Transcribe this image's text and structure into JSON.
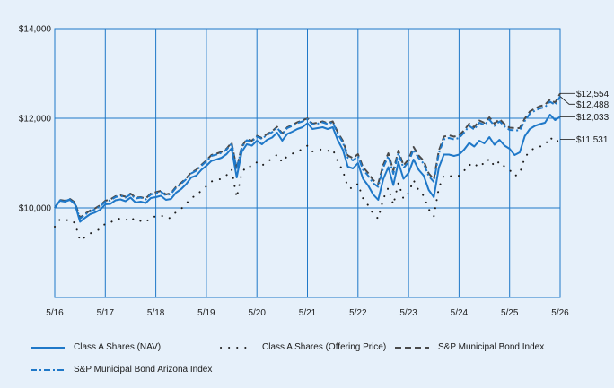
{
  "chart_data": {
    "type": "line",
    "title": "",
    "xlabel": "",
    "ylabel": "",
    "ylim": [
      8000,
      14000
    ],
    "yticks": [
      {
        "value": 10000,
        "label": "$10,000"
      },
      {
        "value": 12000,
        "label": "$12,000"
      },
      {
        "value": 14000,
        "label": "$14,000"
      }
    ],
    "xticks": [
      "5/16",
      "5/17",
      "5/18",
      "5/19",
      "5/20",
      "5/21",
      "5/22",
      "5/23",
      "5/24",
      "5/25",
      "5/26"
    ],
    "grid": true,
    "legend_position": "bottom",
    "x": [
      0,
      0.1,
      0.2,
      0.3,
      0.4,
      0.5,
      0.6,
      0.7,
      0.8,
      0.9,
      1.0,
      1.1,
      1.2,
      1.3,
      1.4,
      1.5,
      1.6,
      1.7,
      1.8,
      1.9,
      2.0,
      2.1,
      2.2,
      2.3,
      2.4,
      2.5,
      2.6,
      2.7,
      2.8,
      2.9,
      3.0,
      3.1,
      3.2,
      3.3,
      3.4,
      3.5,
      3.6,
      3.7,
      3.8,
      3.9,
      4.0,
      4.1,
      4.2,
      4.3,
      4.4,
      4.5,
      4.6,
      4.7,
      4.8,
      4.9,
      5.0,
      5.1,
      5.2,
      5.3,
      5.4,
      5.5,
      5.6,
      5.7,
      5.8,
      5.9,
      6.0,
      6.1,
      6.2,
      6.3,
      6.4,
      6.5,
      6.6,
      6.7,
      6.8,
      6.9,
      7.0,
      7.1,
      7.2,
      7.3,
      7.4,
      7.5,
      7.6,
      7.7,
      7.8,
      7.9,
      8.0,
      8.1,
      8.2,
      8.3,
      8.4,
      8.5,
      8.6,
      8.7,
      8.8,
      8.9,
      9.0,
      9.1,
      9.2,
      9.3,
      9.4,
      9.5,
      9.6,
      9.7,
      9.8,
      9.9,
      10.0
    ],
    "series": [
      {
        "name": "Class A Shares (NAV)",
        "color": "#1f78c8",
        "style": "solid",
        "end_label": "$12,033",
        "values": [
          10000,
          10160,
          10140,
          10180,
          10080,
          9690,
          9780,
          9860,
          9900,
          9960,
          10080,
          10090,
          10170,
          10190,
          10150,
          10230,
          10120,
          10140,
          10110,
          10220,
          10240,
          10270,
          10180,
          10200,
          10340,
          10420,
          10530,
          10680,
          10720,
          10850,
          10940,
          11050,
          11080,
          11120,
          11200,
          11330,
          10680,
          11250,
          11420,
          11390,
          11500,
          11420,
          11520,
          11570,
          11680,
          11500,
          11650,
          11700,
          11760,
          11800,
          11890,
          11760,
          11780,
          11800,
          11760,
          11800,
          11510,
          11300,
          10920,
          10880,
          11000,
          10650,
          10500,
          10300,
          10180,
          10640,
          10910,
          10510,
          11020,
          10650,
          10780,
          11080,
          10850,
          10720,
          10400,
          10240,
          10900,
          11190,
          11190,
          11160,
          11190,
          11300,
          11450,
          11370,
          11500,
          11440,
          11580,
          11410,
          11520,
          11390,
          11320,
          11180,
          11240,
          11600,
          11760,
          11830,
          11870,
          11900,
          12080,
          11960,
          12033
        ]
      },
      {
        "name": "Class A Shares (Offering Price)",
        "color": "#1a1a1a",
        "style": "dotted",
        "end_label": "$11,531",
        "values": [
          9580,
          9740,
          9710,
          9750,
          9660,
          9270,
          9350,
          9430,
          9480,
          9530,
          9650,
          9670,
          9750,
          9760,
          9720,
          9800,
          9700,
          9710,
          9680,
          9790,
          9810,
          9840,
          9760,
          9780,
          9910,
          9980,
          10090,
          10230,
          10270,
          10390,
          10480,
          10590,
          10620,
          10650,
          10730,
          10860,
          10230,
          10780,
          10940,
          10920,
          11020,
          10940,
          11040,
          11090,
          11190,
          11020,
          11160,
          11210,
          11260,
          11310,
          11390,
          11260,
          11290,
          11310,
          11270,
          11310,
          11030,
          10830,
          10460,
          10430,
          10540,
          10210,
          10060,
          9870,
          9760,
          10200,
          10450,
          10070,
          10560,
          10200,
          10330,
          10620,
          10390,
          10270,
          9970,
          9810,
          10450,
          10720,
          10720,
          10690,
          10720,
          10830,
          10970,
          10900,
          11020,
          10960,
          11100,
          10930,
          11040,
          10920,
          10850,
          10710,
          10770,
          11120,
          11270,
          11340,
          11370,
          11400,
          11580,
          11460,
          11531
        ]
      },
      {
        "name": "S&P Municipal Bond Index",
        "color": "#4a4a4a",
        "style": "dashed",
        "end_label": "$12,554",
        "values": [
          10000,
          10180,
          10160,
          10200,
          10120,
          9780,
          9870,
          9940,
          9990,
          10060,
          10160,
          10190,
          10260,
          10280,
          10250,
          10320,
          10230,
          10240,
          10210,
          10320,
          10350,
          10380,
          10300,
          10330,
          10470,
          10560,
          10660,
          10790,
          10850,
          10960,
          11060,
          11180,
          11210,
          11250,
          11320,
          11460,
          10880,
          11370,
          11530,
          11500,
          11610,
          11560,
          11650,
          11710,
          11810,
          11660,
          11800,
          11850,
          11910,
          11950,
          12000,
          11880,
          11900,
          11930,
          11890,
          11930,
          11680,
          11500,
          11170,
          11110,
          11200,
          10910,
          10780,
          10620,
          10540,
          10960,
          11220,
          10830,
          11280,
          10950,
          11080,
          11360,
          11170,
          11050,
          10770,
          10640,
          11280,
          11590,
          11620,
          11590,
          11620,
          11730,
          11880,
          11800,
          11950,
          11900,
          12020,
          11880,
          11980,
          11870,
          11790,
          11780,
          11780,
          11990,
          12150,
          12220,
          12270,
          12300,
          12420,
          12350,
          12554
        ]
      },
      {
        "name": "S&P Municipal Bond Arizona Index",
        "color": "#1f78c8",
        "style": "dashdot",
        "end_label": "$12,488",
        "values": [
          10000,
          10170,
          10150,
          10190,
          10100,
          9760,
          9850,
          9920,
          9970,
          10040,
          10140,
          10170,
          10240,
          10270,
          10230,
          10300,
          10210,
          10230,
          10190,
          10300,
          10330,
          10360,
          10280,
          10310,
          10450,
          10540,
          10640,
          10770,
          10830,
          10940,
          11040,
          11160,
          11190,
          11230,
          11300,
          11440,
          10860,
          11350,
          11510,
          11480,
          11590,
          11540,
          11630,
          11690,
          11790,
          11640,
          11780,
          11830,
          11890,
          11930,
          11980,
          11860,
          11880,
          11910,
          11870,
          11910,
          11650,
          11460,
          11120,
          11060,
          11150,
          10850,
          10720,
          10550,
          10470,
          10900,
          11160,
          10760,
          11220,
          10890,
          11020,
          11300,
          11110,
          10990,
          10710,
          10580,
          11220,
          11530,
          11560,
          11530,
          11560,
          11680,
          11830,
          11750,
          11900,
          11850,
          11970,
          11830,
          11930,
          11820,
          11740,
          11730,
          11730,
          11940,
          12100,
          12170,
          12220,
          12250,
          12370,
          12300,
          12488
        ]
      }
    ]
  }
}
